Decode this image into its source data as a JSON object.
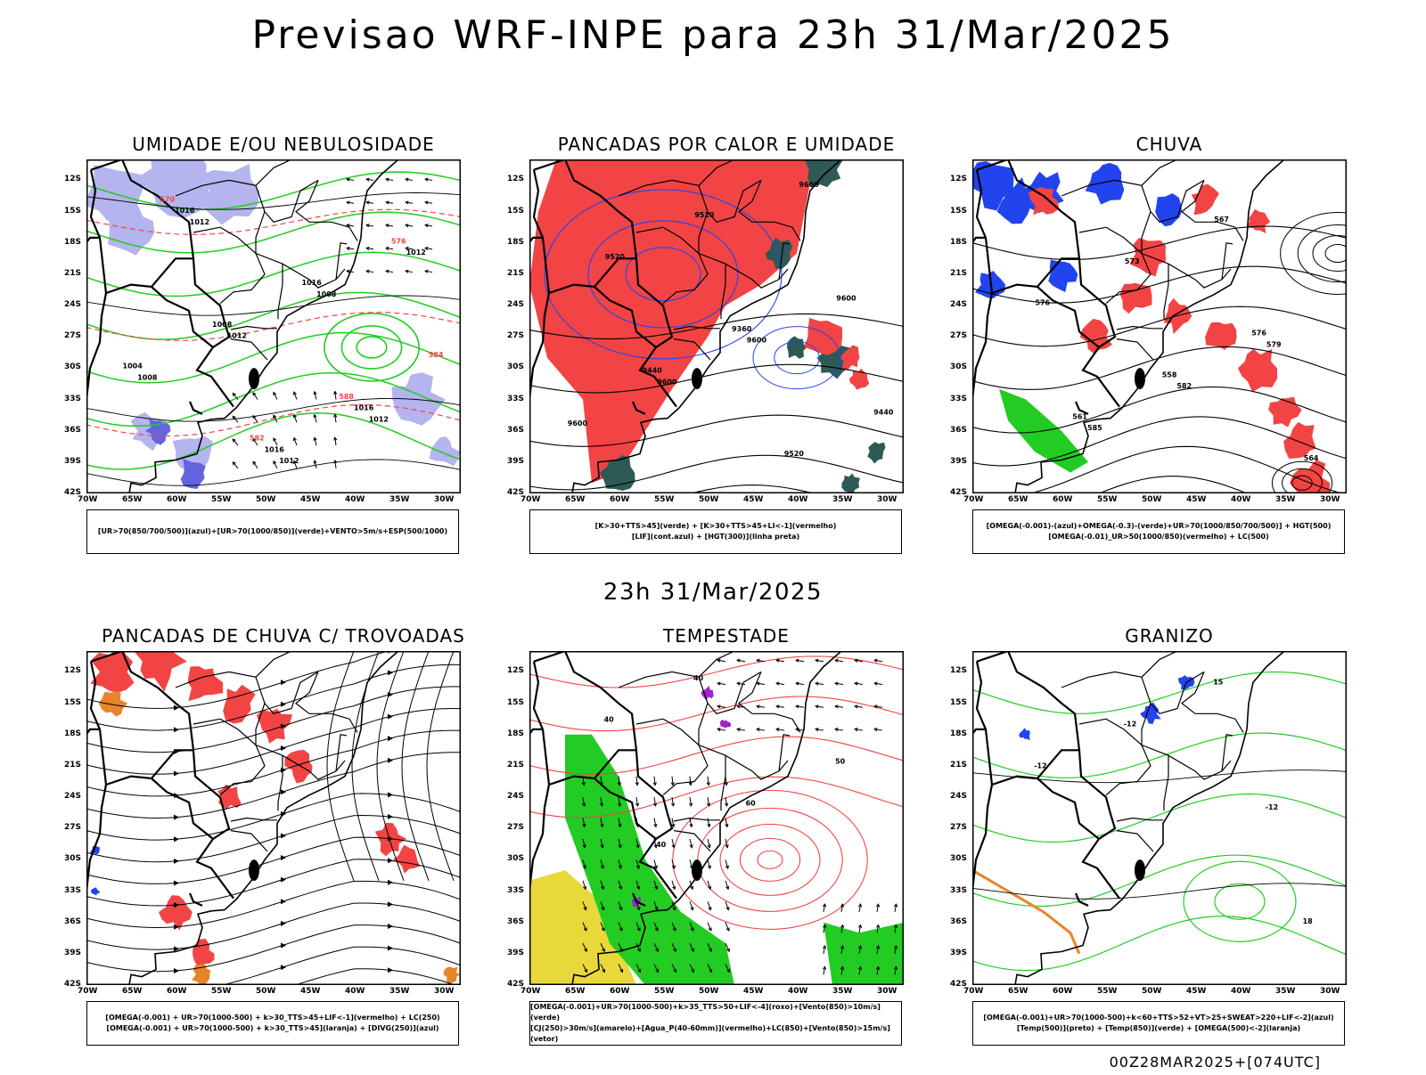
{
  "header": {
    "title": "Previsao WRF-INPE  para 23h 31/Mar/2025",
    "mid_title": "23h 31/Mar/2025",
    "footer": "00Z28MAR2025+[074UTC]"
  },
  "colors": {
    "red": "#f24444",
    "green": "#22cc22",
    "blue": "#2244ee",
    "lavender": "#b4b4ee",
    "orange": "#e8842a",
    "yellow": "#e8d83a",
    "darkteal": "#2d5a55",
    "purple": "#a020d0"
  },
  "chart_data": [
    {
      "type": "map",
      "title": "UMIDADE E/OU NEBULOSIDADE",
      "legend": [
        "[UR>70(850/700/500)](azul)+[UR>70(1000/850)](verde)+VENTO>5m/s+ESP(500/1000)"
      ],
      "lat_ticks": [
        "12S",
        "15S",
        "18S",
        "21S",
        "24S",
        "27S",
        "30S",
        "33S",
        "36S",
        "39S",
        "42S"
      ],
      "lon_ticks": [
        "70W",
        "65W",
        "60W",
        "55W",
        "50W",
        "45W",
        "40W",
        "35W",
        "30W"
      ],
      "contour_labels": [
        "1012",
        "1012",
        "1012",
        "1008",
        "1012",
        "1008",
        "1012",
        "1016",
        "1016",
        "1016",
        "1004",
        "1008",
        "1016",
        "576",
        "570",
        "582",
        "588",
        "584"
      ]
    },
    {
      "type": "map",
      "title": "PANCADAS POR CALOR E UMIDADE",
      "legend": [
        "[K>30+TTS>45](verde) + [K>30+TTS>45+LI<-1](vermelho)",
        "[LIF](cont.azul) + [HGT(300)](linha preta)"
      ],
      "lat_ticks": [
        "12S",
        "15S",
        "18S",
        "21S",
        "24S",
        "27S",
        "30S",
        "33S",
        "36S",
        "39S",
        "42S"
      ],
      "lon_ticks": [
        "70W",
        "65W",
        "60W",
        "55W",
        "50W",
        "45W",
        "40W",
        "35W",
        "30W"
      ],
      "contour_labels": [
        "9600",
        "9600",
        "9600",
        "9600",
        "9600",
        "9520",
        "9520",
        "9520",
        "9440",
        "9440",
        "9360"
      ]
    },
    {
      "type": "map",
      "title": "CHUVA",
      "legend": [
        "[OMEGA(-0.001)-(azul)+OMEGA(-0.3)-(verde)+UR>70(1000/850/700/500)] + HGT(500)",
        "[OMEGA(-0.01)_UR>50(1000/850)(vermelho) + LC(500)"
      ],
      "lat_ticks": [
        "12S",
        "15S",
        "18S",
        "21S",
        "24S",
        "27S",
        "30S",
        "33S",
        "36S",
        "39S",
        "42S"
      ],
      "lon_ticks": [
        "70W",
        "65W",
        "60W",
        "55W",
        "50W",
        "45W",
        "40W",
        "35W",
        "30W"
      ],
      "contour_labels": [
        "585",
        "582",
        "579",
        "576",
        "573",
        "567",
        "564",
        "561",
        "558",
        "576"
      ]
    },
    {
      "type": "map",
      "title": "PANCADAS DE CHUVA C/ TROVOADAS",
      "legend": [
        "[OMEGA(-0.001) + UR>70(1000-500) + k>30_TTS>45+LIF<-1](vermelho) + LC(250)",
        "[OMEGA(-0.001) + UR>70(1000-500) + k>30_TTS>45](laranja) + [DIVG(250)](azul)"
      ],
      "lat_ticks": [
        "12S",
        "15S",
        "18S",
        "21S",
        "24S",
        "27S",
        "30S",
        "33S",
        "36S",
        "39S",
        "42S"
      ],
      "lon_ticks": [
        "70W",
        "65W",
        "60W",
        "55W",
        "50W",
        "45W",
        "40W",
        "35W",
        "30W"
      ],
      "contour_labels": []
    },
    {
      "type": "map",
      "title": "TEMPESTADE",
      "legend": [
        "[OMEGA(-0.001)+UR>70(1000-500)+k>35_TTS>50+LIF<-4](roxo)+[Vento(850)>10m/s](verde)",
        "[CJ(250)>30m/s](amarelo)+[Agua_P(40-60mm)](vermelho)+LC(850)+[Vento(850)>15m/s](vetor)"
      ],
      "lat_ticks": [
        "12S",
        "15S",
        "18S",
        "21S",
        "24S",
        "27S",
        "30S",
        "33S",
        "36S",
        "39S",
        "42S"
      ],
      "lon_ticks": [
        "70W",
        "65W",
        "60W",
        "55W",
        "50W",
        "45W",
        "40W",
        "35W",
        "30W"
      ],
      "contour_labels": [
        "40",
        "60",
        "50",
        "40",
        "40"
      ]
    },
    {
      "type": "map",
      "title": "GRANIZO",
      "legend": [
        "[OMEGA(-0.001)+UR>70(1000-500)+k<60+TTS>52+VT>25+SWEAT>220+LIF<-2](azul)",
        "[Temp(500)](preto) + [Temp(850)](verde) + [OMEGA(500)<-2](laranja)"
      ],
      "lat_ticks": [
        "12S",
        "15S",
        "18S",
        "21S",
        "24S",
        "27S",
        "30S",
        "33S",
        "36S",
        "39S",
        "42S"
      ],
      "lon_ticks": [
        "70W",
        "65W",
        "60W",
        "55W",
        "50W",
        "45W",
        "40W",
        "35W",
        "30W"
      ],
      "contour_labels": [
        "-12",
        "-12",
        "-12",
        "15",
        "18"
      ]
    }
  ]
}
